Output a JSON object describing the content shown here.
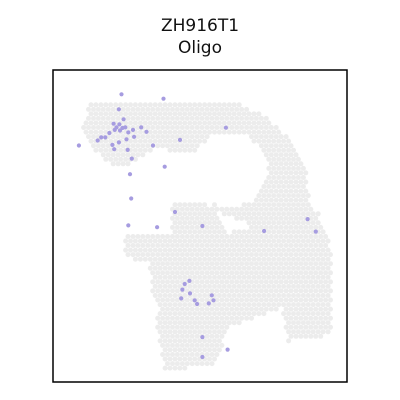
{
  "chart_data": {
    "type": "scatter",
    "title": "ZH916T1",
    "subtitle": "Oligo",
    "background_color": "#ececec",
    "highlight_color": "#a69ce0",
    "frame_color": "#000000",
    "tissue_regions": [
      [
        [
          0.13,
          0.9
        ],
        [
          0.62,
          0.9
        ],
        [
          0.74,
          0.84
        ],
        [
          0.82,
          0.76
        ],
        [
          0.86,
          0.68
        ],
        [
          0.88,
          0.55
        ],
        [
          0.8,
          0.48
        ],
        [
          0.62,
          0.52
        ],
        [
          0.55,
          0.55
        ],
        [
          0.52,
          0.72
        ],
        [
          0.36,
          0.75
        ],
        [
          0.22,
          0.68
        ],
        [
          0.14,
          0.74
        ],
        [
          0.1,
          0.82
        ]
      ],
      [
        [
          0.4,
          0.57
        ],
        [
          0.52,
          0.58
        ],
        [
          0.6,
          0.48
        ],
        [
          0.9,
          0.55
        ],
        [
          0.95,
          0.42
        ],
        [
          0.95,
          0.15
        ],
        [
          0.8,
          0.13
        ],
        [
          0.78,
          0.24
        ],
        [
          0.68,
          0.2
        ],
        [
          0.6,
          0.18
        ],
        [
          0.55,
          0.05
        ],
        [
          0.38,
          0.04
        ],
        [
          0.35,
          0.2
        ],
        [
          0.4,
          0.35
        ]
      ],
      [
        [
          0.32,
          0.48
        ],
        [
          0.56,
          0.48
        ],
        [
          0.57,
          0.32
        ],
        [
          0.52,
          0.18
        ],
        [
          0.42,
          0.18
        ],
        [
          0.34,
          0.26
        ]
      ],
      [
        [
          0.24,
          0.48
        ],
        [
          0.4,
          0.48
        ],
        [
          0.42,
          0.38
        ],
        [
          0.32,
          0.38
        ],
        [
          0.24,
          0.4
        ]
      ]
    ],
    "points": [
      {
        "x": 0.233,
        "y": 0.922
      },
      {
        "x": 0.376,
        "y": 0.908
      },
      {
        "x": 0.224,
        "y": 0.874
      },
      {
        "x": 0.24,
        "y": 0.842
      },
      {
        "x": 0.206,
        "y": 0.828
      },
      {
        "x": 0.226,
        "y": 0.826
      },
      {
        "x": 0.216,
        "y": 0.816
      },
      {
        "x": 0.236,
        "y": 0.814
      },
      {
        "x": 0.21,
        "y": 0.808
      },
      {
        "x": 0.228,
        "y": 0.806
      },
      {
        "x": 0.246,
        "y": 0.816
      },
      {
        "x": 0.256,
        "y": 0.8
      },
      {
        "x": 0.272,
        "y": 0.808
      },
      {
        "x": 0.192,
        "y": 0.798
      },
      {
        "x": 0.178,
        "y": 0.784
      },
      {
        "x": 0.164,
        "y": 0.784
      },
      {
        "x": 0.3,
        "y": 0.816
      },
      {
        "x": 0.318,
        "y": 0.802
      },
      {
        "x": 0.276,
        "y": 0.786
      },
      {
        "x": 0.25,
        "y": 0.778
      },
      {
        "x": 0.224,
        "y": 0.768
      },
      {
        "x": 0.202,
        "y": 0.76
      },
      {
        "x": 0.152,
        "y": 0.774
      },
      {
        "x": 0.088,
        "y": 0.758
      },
      {
        "x": 0.208,
        "y": 0.746
      },
      {
        "x": 0.254,
        "y": 0.744
      },
      {
        "x": 0.268,
        "y": 0.716
      },
      {
        "x": 0.34,
        "y": 0.758
      },
      {
        "x": 0.432,
        "y": 0.776
      },
      {
        "x": 0.588,
        "y": 0.815
      },
      {
        "x": 0.38,
        "y": 0.69
      },
      {
        "x": 0.262,
        "y": 0.666
      },
      {
        "x": 0.266,
        "y": 0.588
      },
      {
        "x": 0.415,
        "y": 0.545
      },
      {
        "x": 0.256,
        "y": 0.502
      },
      {
        "x": 0.354,
        "y": 0.496
      },
      {
        "x": 0.508,
        "y": 0.5
      },
      {
        "x": 0.718,
        "y": 0.484
      },
      {
        "x": 0.866,
        "y": 0.522
      },
      {
        "x": 0.894,
        "y": 0.482
      },
      {
        "x": 0.464,
        "y": 0.324
      },
      {
        "x": 0.448,
        "y": 0.314
      },
      {
        "x": 0.44,
        "y": 0.296
      },
      {
        "x": 0.466,
        "y": 0.284
      },
      {
        "x": 0.54,
        "y": 0.278
      },
      {
        "x": 0.482,
        "y": 0.262
      },
      {
        "x": 0.436,
        "y": 0.268
      },
      {
        "x": 0.49,
        "y": 0.25
      },
      {
        "x": 0.53,
        "y": 0.252
      },
      {
        "x": 0.546,
        "y": 0.262
      },
      {
        "x": 0.508,
        "y": 0.144
      },
      {
        "x": 0.594,
        "y": 0.104
      },
      {
        "x": 0.508,
        "y": 0.08
      }
    ]
  }
}
